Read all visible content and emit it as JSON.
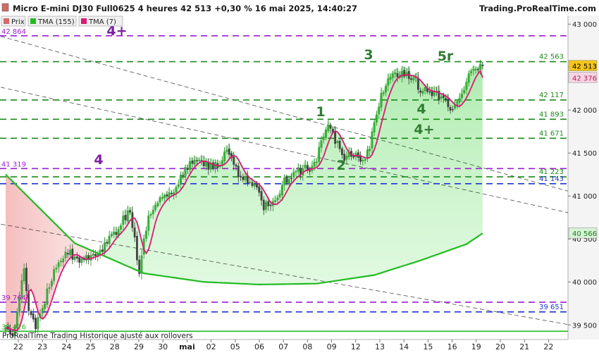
{
  "header": {
    "title": "Micro E-mini DJ30 Full0625 4 heures 42 513 +0,30 % 16 mai 2025, 14:40:27",
    "brand": "Trading.ProRealTime.com"
  },
  "legend": [
    {
      "label": "Prix",
      "color": "#d46a6a"
    },
    {
      "label": "TMA (155)",
      "color": "#22bb22"
    },
    {
      "label": "TMA (7)",
      "color": "#d81b75"
    }
  ],
  "footer": "ProRealTime Trading  Historique ajusté aux rollovers",
  "chart_data": {
    "type": "candlestick",
    "instrument": "Micro E-mini DJ30 Full0625",
    "timeframe": "4 heures",
    "ylim": [
      39330,
      43100
    ],
    "y_ticks": [
      43000,
      42500,
      42000,
      41500,
      41000,
      40500,
      40000,
      39500
    ],
    "y_tick_labels": [
      "43 000",
      "42 500",
      "42 000",
      "41 500",
      "41 000",
      "40 500",
      "40 000",
      "39 500"
    ],
    "x_tick_labels": [
      "22",
      "23",
      "24",
      "25",
      "28",
      "29",
      "30",
      "mai",
      "02",
      "05",
      "06",
      "07",
      "08",
      "09",
      "12",
      "13",
      "14",
      "15",
      "16",
      "19",
      "20",
      "21",
      "22"
    ],
    "last_price": 42513,
    "last_price_label": "42 513",
    "tma7_last": 42376,
    "tma7_last_label": "42 376",
    "tma155_last": 40566,
    "tma155_last_label": "40 566",
    "horizontal_levels": [
      {
        "value": 42864,
        "label": "42 864",
        "color": "#9b1fd1",
        "style": "dashed",
        "side": "left"
      },
      {
        "value": 42563,
        "label": "42 563",
        "color": "#1a8a1a",
        "style": "dashed",
        "side": "right"
      },
      {
        "value": 42117,
        "label": "42 117",
        "color": "#1a8a1a",
        "style": "dashed",
        "side": "right"
      },
      {
        "value": 41893,
        "label": "41 893",
        "color": "#1a8a1a",
        "style": "dashed",
        "side": "right"
      },
      {
        "value": 41671,
        "label": "41 671",
        "color": "#1a8a1a",
        "style": "dashed",
        "side": "right"
      },
      {
        "value": 41319,
        "label": "41 319",
        "color": "#9b1fd1",
        "style": "dashed",
        "side": "left"
      },
      {
        "value": 41223,
        "label": "41 223",
        "color": "#1a8a1a",
        "style": "dashed",
        "side": "right"
      },
      {
        "value": 41143,
        "label": "41 143",
        "color": "#1f35d1",
        "style": "dashed",
        "side": "right"
      },
      {
        "value": 39764,
        "label": "39 764",
        "color": "#9b1fd1",
        "style": "dashed",
        "side": "left"
      },
      {
        "value": 39651,
        "label": "39 651",
        "color": "#1f35d1",
        "style": "dashed",
        "side": "right"
      },
      {
        "value": 39426,
        "label": "39 426",
        "color": "#22bb22",
        "style": "solid",
        "side": "left"
      }
    ],
    "wave_labels": [
      {
        "text": "4+",
        "color": "#7b1fa2"
      },
      {
        "text": "4",
        "color": "#7b1fa2"
      },
      {
        "text": "1",
        "color": "#2e7d32"
      },
      {
        "text": "2",
        "color": "#2e7d32"
      },
      {
        "text": "3",
        "color": "#2e7d32"
      },
      {
        "text": "4",
        "color": "#2e7d32"
      },
      {
        "text": "4+",
        "color": "#2e7d32"
      },
      {
        "text": "5r",
        "color": "#2e7d32"
      }
    ],
    "anchor_points": [
      [
        0,
        39430
      ],
      [
        4,
        39420
      ],
      [
        8,
        40150
      ],
      [
        10,
        39700
      ],
      [
        13,
        39450
      ],
      [
        20,
        40050
      ],
      [
        26,
        40350
      ],
      [
        34,
        40250
      ],
      [
        42,
        40400
      ],
      [
        48,
        40600
      ],
      [
        54,
        40850
      ],
      [
        58,
        40100
      ],
      [
        62,
        40800
      ],
      [
        68,
        41000
      ],
      [
        74,
        41100
      ],
      [
        80,
        41400
      ],
      [
        88,
        41350
      ],
      [
        92,
        41350
      ],
      [
        96,
        41500
      ],
      [
        102,
        41200
      ],
      [
        108,
        41150
      ],
      [
        112,
        40850
      ],
      [
        116,
        40950
      ],
      [
        122,
        41200
      ],
      [
        128,
        41300
      ],
      [
        134,
        41350
      ],
      [
        140,
        41850
      ],
      [
        146,
        41450
      ],
      [
        150,
        41500
      ],
      [
        155,
        41400
      ],
      [
        158,
        41600
      ],
      [
        161,
        41950
      ],
      [
        164,
        42250
      ],
      [
        168,
        42450
      ],
      [
        172,
        42420
      ],
      [
        176,
        42400
      ],
      [
        180,
        42250
      ],
      [
        185,
        42200
      ],
      [
        190,
        42150
      ],
      [
        194,
        42000
      ],
      [
        198,
        42150
      ],
      [
        202,
        42450
      ],
      [
        205,
        42480
      ],
      [
        207,
        42513
      ]
    ],
    "tma155_points": [
      [
        0,
        41250
      ],
      [
        30,
        40450
      ],
      [
        60,
        40100
      ],
      [
        86,
        40000
      ],
      [
        110,
        39970
      ],
      [
        135,
        39980
      ],
      [
        160,
        40080
      ],
      [
        180,
        40250
      ],
      [
        200,
        40440
      ],
      [
        207,
        40566
      ]
    ],
    "trendlines": [
      {
        "color": "#000000",
        "points": [
          [
            -8,
            42900
          ],
          [
            245,
            41050
          ]
        ]
      },
      {
        "color": "#000000",
        "points": [
          [
            -8,
            42300
          ],
          [
            245,
            40800
          ]
        ]
      },
      {
        "color": "#000000",
        "points": [
          [
            -8,
            40700
          ],
          [
            245,
            39500
          ]
        ]
      }
    ]
  }
}
